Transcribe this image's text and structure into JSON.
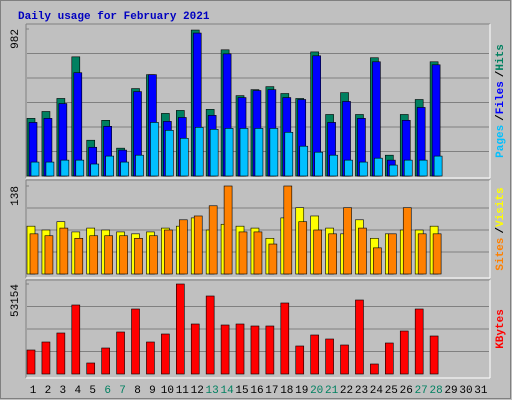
{
  "chart_data": [
    {
      "type": "bar",
      "title": "Daily usage for February 2021",
      "title_color": "#0000c0",
      "legend_separator": "/",
      "ylim": [
        0,
        982
      ],
      "yticks": [
        982
      ],
      "grid": true,
      "series": [
        {
          "name": "Hits",
          "color": "#008060",
          "values": [
            385,
            431,
            518,
            796,
            239,
            372,
            186,
            584,
            677,
            418,
            438,
            975,
            445,
            843,
            537,
            577,
            597,
            551,
            518,
            829,
            411,
            557,
            411,
            790,
            139,
            411,
            511,
            763,
            null,
            null,
            null
          ]
        },
        {
          "name": "Files",
          "color": "#0000ff",
          "values": [
            358,
            385,
            484,
            690,
            192,
            332,
            173,
            564,
            677,
            365,
            391,
            955,
            405,
            816,
            524,
            571,
            577,
            524,
            511,
            803,
            358,
            498,
            385,
            763,
            106,
            372,
            458,
            743,
            null,
            null,
            null
          ]
        },
        {
          "name": "Pages",
          "color": "#00c0ff",
          "values": [
            93,
            93,
            106,
            106,
            80,
            133,
            93,
            139,
            358,
            305,
            252,
            325,
            312,
            318,
            318,
            318,
            318,
            292,
            199,
            159,
            139,
            106,
            93,
            119,
            73,
            106,
            106,
            133,
            null,
            null,
            null
          ]
        }
      ]
    },
    {
      "type": "bar",
      "legend_separator": "/",
      "ylim": [
        0,
        138
      ],
      "yticks": [
        138
      ],
      "grid": true,
      "series": [
        {
          "name": "Visits",
          "color": "#ffff00",
          "values": [
            75,
            69,
            82,
            66,
            72,
            69,
            66,
            63,
            66,
            72,
            75,
            88,
            69,
            78,
            75,
            72,
            56,
            88,
            104,
            91,
            72,
            63,
            85,
            56,
            63,
            69,
            69,
            75,
            null,
            null,
            null
          ]
        },
        {
          "name": "Sites",
          "color": "#ff8000",
          "values": [
            63,
            60,
            72,
            56,
            60,
            60,
            60,
            56,
            60,
            69,
            85,
            91,
            107,
            138,
            66,
            66,
            47,
            138,
            82,
            69,
            63,
            104,
            72,
            41,
            63,
            104,
            63,
            63,
            null,
            null,
            null
          ]
        }
      ]
    },
    {
      "type": "bar",
      "ylim": [
        0,
        53154
      ],
      "yticks": [
        53154
      ],
      "grid": true,
      "categories": [
        "1",
        "2",
        "3",
        "4",
        "5",
        "6",
        "7",
        "8",
        "9",
        "10",
        "11",
        "12",
        "13",
        "14",
        "15",
        "16",
        "17",
        "18",
        "19",
        "20",
        "21",
        "22",
        "23",
        "24",
        "25",
        "26",
        "27",
        "28",
        "29",
        "30",
        "31"
      ],
      "category_colors": [
        "#000000",
        "#000000",
        "#000000",
        "#000000",
        "#000000",
        "#008060",
        "#008060",
        "#000000",
        "#000000",
        "#000000",
        "#000000",
        "#000000",
        "#008060",
        "#008060",
        "#000000",
        "#000000",
        "#000000",
        "#000000",
        "#000000",
        "#008060",
        "#008060",
        "#000000",
        "#000000",
        "#000000",
        "#000000",
        "#000000",
        "#008060",
        "#008060",
        "#000000",
        "#000000",
        "#000000"
      ],
      "series": [
        {
          "name": "KBytes",
          "color": "#ff0000",
          "values": [
            14175,
            18900,
            24216,
            40752,
            6497,
            15356,
            24806,
            38390,
            18900,
            23625,
            53154,
            29531,
            46067,
            28940,
            29531,
            28350,
            28350,
            41933,
            16537,
            23034,
            20672,
            17128,
            43705,
            5906,
            18309,
            25397,
            38390,
            22443,
            null,
            null,
            null
          ]
        }
      ]
    }
  ]
}
